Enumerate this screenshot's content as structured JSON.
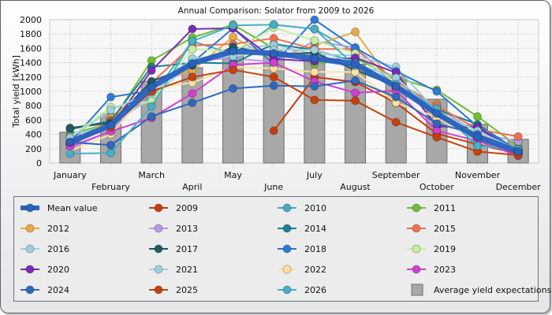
{
  "chart_data": {
    "type": "line",
    "title": "Annual Comparison: Solator from 2009 to 2026",
    "xlabel": "",
    "ylabel": "Total yield [kWh]",
    "ylim": [
      0,
      2000
    ],
    "yticks": [
      0,
      200,
      400,
      600,
      800,
      1000,
      1200,
      1400,
      1600,
      1800,
      2000
    ],
    "grid": true,
    "legend_position": "bottom",
    "categories": [
      "January",
      "February",
      "March",
      "April",
      "May",
      "June",
      "July",
      "August",
      "September",
      "October",
      "November",
      "December"
    ],
    "bars": {
      "name": "Average yield expectations",
      "color": "#a8a8a8",
      "values": [
        430,
        690,
        1140,
        1330,
        1530,
        1530,
        1540,
        1380,
        1210,
        890,
        540,
        330
      ]
    },
    "series": [
      {
        "name": "Mean value",
        "color": "#2a62c0",
        "mean": true,
        "values": [
          290,
          530,
          1060,
          1390,
          1560,
          1530,
          1460,
          1380,
          1070,
          690,
          360,
          160
        ]
      },
      {
        "name": "2009",
        "color": "#c83c0c",
        "values": [
          null,
          null,
          null,
          null,
          null,
          450,
          1200,
          1130,
          840,
          410,
          260,
          130
        ]
      },
      {
        "name": "2010",
        "color": "#46a8c0",
        "values": [
          260,
          620,
          930,
          1700,
          1520,
          1930,
          1870,
          1540,
          1090,
          760,
          290,
          150
        ]
      },
      {
        "name": "2011",
        "color": "#6ebe32",
        "values": [
          400,
          560,
          1430,
          1750,
          1930,
          1600,
          1380,
          1460,
          1190,
          1020,
          650,
          230
        ]
      },
      {
        "name": "2012",
        "color": "#e8aa46",
        "values": [
          240,
          630,
          1100,
          1290,
          1760,
          1440,
          1640,
          1830,
          1050,
          820,
          350,
          160
        ]
      },
      {
        "name": "2013",
        "color": "#b49ae6",
        "values": [
          200,
          450,
          980,
          1440,
          1460,
          1410,
          1700,
          1610,
          1130,
          780,
          420,
          300
        ]
      },
      {
        "name": "2014",
        "color": "#1e7e90",
        "values": [
          470,
          590,
          1340,
          1400,
          1390,
          1660,
          1580,
          1410,
          1050,
          750,
          540,
          170
        ]
      },
      {
        "name": "2015",
        "color": "#f07050",
        "values": [
          270,
          580,
          1120,
          1640,
          1660,
          1740,
          1590,
          1590,
          1140,
          800,
          470,
          370
        ]
      },
      {
        "name": "2016",
        "color": "#9ccfdc",
        "values": [
          370,
          540,
          900,
          1420,
          1580,
          1650,
          1520,
          1500,
          1340,
          720,
          330,
          180
        ]
      },
      {
        "name": "2017",
        "color": "#1e5a5e",
        "values": [
          490,
          560,
          1140,
          1360,
          1620,
          1510,
          1540,
          1300,
          1070,
          690,
          350,
          140
        ]
      },
      {
        "name": "2018",
        "color": "#2e78d8",
        "values": [
          290,
          920,
          1010,
          1400,
          1880,
          1380,
          2000,
          1610,
          1280,
          1000,
          510,
          170
        ]
      },
      {
        "name": "2019",
        "color": "#c6f0a0",
        "values": [
          360,
          780,
          860,
          1590,
          1550,
          1890,
          1710,
          1530,
          1120,
          730,
          420,
          190
        ]
      },
      {
        "name": "2020",
        "color": "#7a2ab8",
        "values": [
          270,
          500,
          1290,
          1870,
          1880,
          1450,
          1420,
          1470,
          1260,
          510,
          500,
          130
        ]
      },
      {
        "name": "2021",
        "color": "#9ed2dc",
        "values": [
          350,
          740,
          990,
          1460,
          1490,
          1580,
          1580,
          1390,
          1190,
          700,
          450,
          170
        ]
      },
      {
        "name": "2022",
        "color": "#ffe0a0",
        "values": [
          170,
          400,
          1050,
          1120,
          1340,
          1320,
          1270,
          1270,
          840,
          640,
          290,
          160
        ]
      },
      {
        "name": "2023",
        "color": "#d23ed2",
        "values": [
          230,
          440,
          630,
          970,
          1370,
          1400,
          1140,
          980,
          1010,
          450,
          310,
          100
        ]
      },
      {
        "name": "2024",
        "color": "#2e68c0",
        "values": [
          290,
          250,
          650,
          840,
          1040,
          1080,
          1070,
          1150,
          920,
          550,
          400,
          190
        ]
      },
      {
        "name": "2025",
        "color": "#c8400a",
        "values": [
          290,
          500,
          1000,
          1200,
          1300,
          1200,
          880,
          870,
          570,
          360,
          160,
          110
        ]
      },
      {
        "name": "2026",
        "color": "#46b0c8",
        "values": [
          130,
          140,
          790,
          1700,
          1920,
          1930,
          1870,
          1360,
          1100,
          760,
          240,
          190
        ]
      }
    ]
  },
  "legend": {
    "items": [
      {
        "label": "Mean value",
        "color": "#2a62c0",
        "kind": "mean"
      },
      {
        "label": "2009",
        "color": "#c83c0c",
        "kind": "line"
      },
      {
        "label": "2010",
        "color": "#46a8c0",
        "kind": "line"
      },
      {
        "label": "2011",
        "color": "#6ebe32",
        "kind": "line"
      },
      {
        "label": "2012",
        "color": "#e8aa46",
        "kind": "line"
      },
      {
        "label": "2013",
        "color": "#b49ae6",
        "kind": "line"
      },
      {
        "label": "2014",
        "color": "#1e7e90",
        "kind": "line"
      },
      {
        "label": "2015",
        "color": "#f07050",
        "kind": "line"
      },
      {
        "label": "2016",
        "color": "#9ccfdc",
        "kind": "line"
      },
      {
        "label": "2017",
        "color": "#1e5a5e",
        "kind": "line"
      },
      {
        "label": "2018",
        "color": "#2e78d8",
        "kind": "line"
      },
      {
        "label": "2019",
        "color": "#c6f0a0",
        "kind": "line"
      },
      {
        "label": "2020",
        "color": "#7a2ab8",
        "kind": "line"
      },
      {
        "label": "2021",
        "color": "#9ed2dc",
        "kind": "line"
      },
      {
        "label": "2022",
        "color": "#ffe0a0",
        "kind": "line"
      },
      {
        "label": "2023",
        "color": "#d23ed2",
        "kind": "line"
      },
      {
        "label": "2024",
        "color": "#2e68c0",
        "kind": "line"
      },
      {
        "label": "2025",
        "color": "#c8400a",
        "kind": "line"
      },
      {
        "label": "2026",
        "color": "#46b0c8",
        "kind": "line"
      },
      {
        "label": "Average yield expectations",
        "color": "#a8a8a8",
        "kind": "bar"
      }
    ]
  }
}
